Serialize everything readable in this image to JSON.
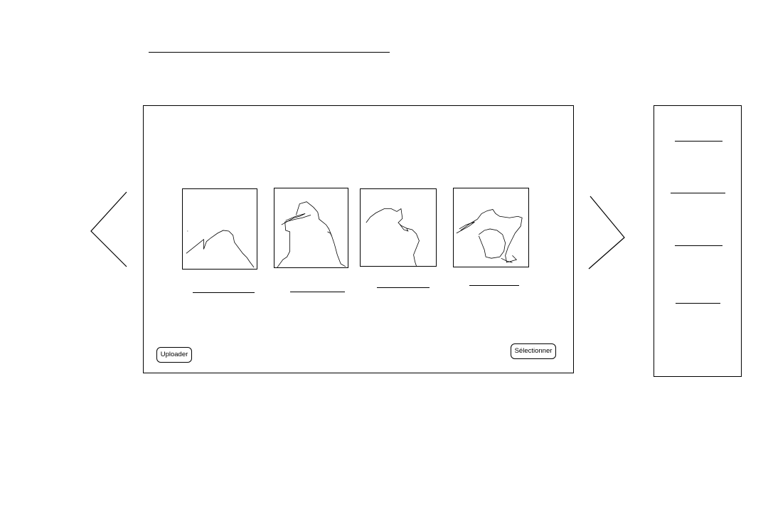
{
  "header": {
    "title_placeholder": ""
  },
  "carousel": {
    "prev_icon": "chevron-left-icon",
    "next_icon": "chevron-right-icon",
    "thumbnails": [
      {
        "caption": "",
        "icon": "sketch-image-icon"
      },
      {
        "caption": "",
        "icon": "sketch-image-icon"
      },
      {
        "caption": "",
        "icon": "sketch-image-icon"
      },
      {
        "caption": "",
        "icon": "sketch-image-icon"
      }
    ]
  },
  "buttons": {
    "upload_label": "Uploader",
    "select_label": "Sélectionner"
  },
  "sidebar": {
    "items": [
      {
        "label": ""
      },
      {
        "label": ""
      },
      {
        "label": ""
      },
      {
        "label": ""
      }
    ]
  },
  "colors": {
    "stroke": "#000000",
    "background": "#ffffff"
  }
}
